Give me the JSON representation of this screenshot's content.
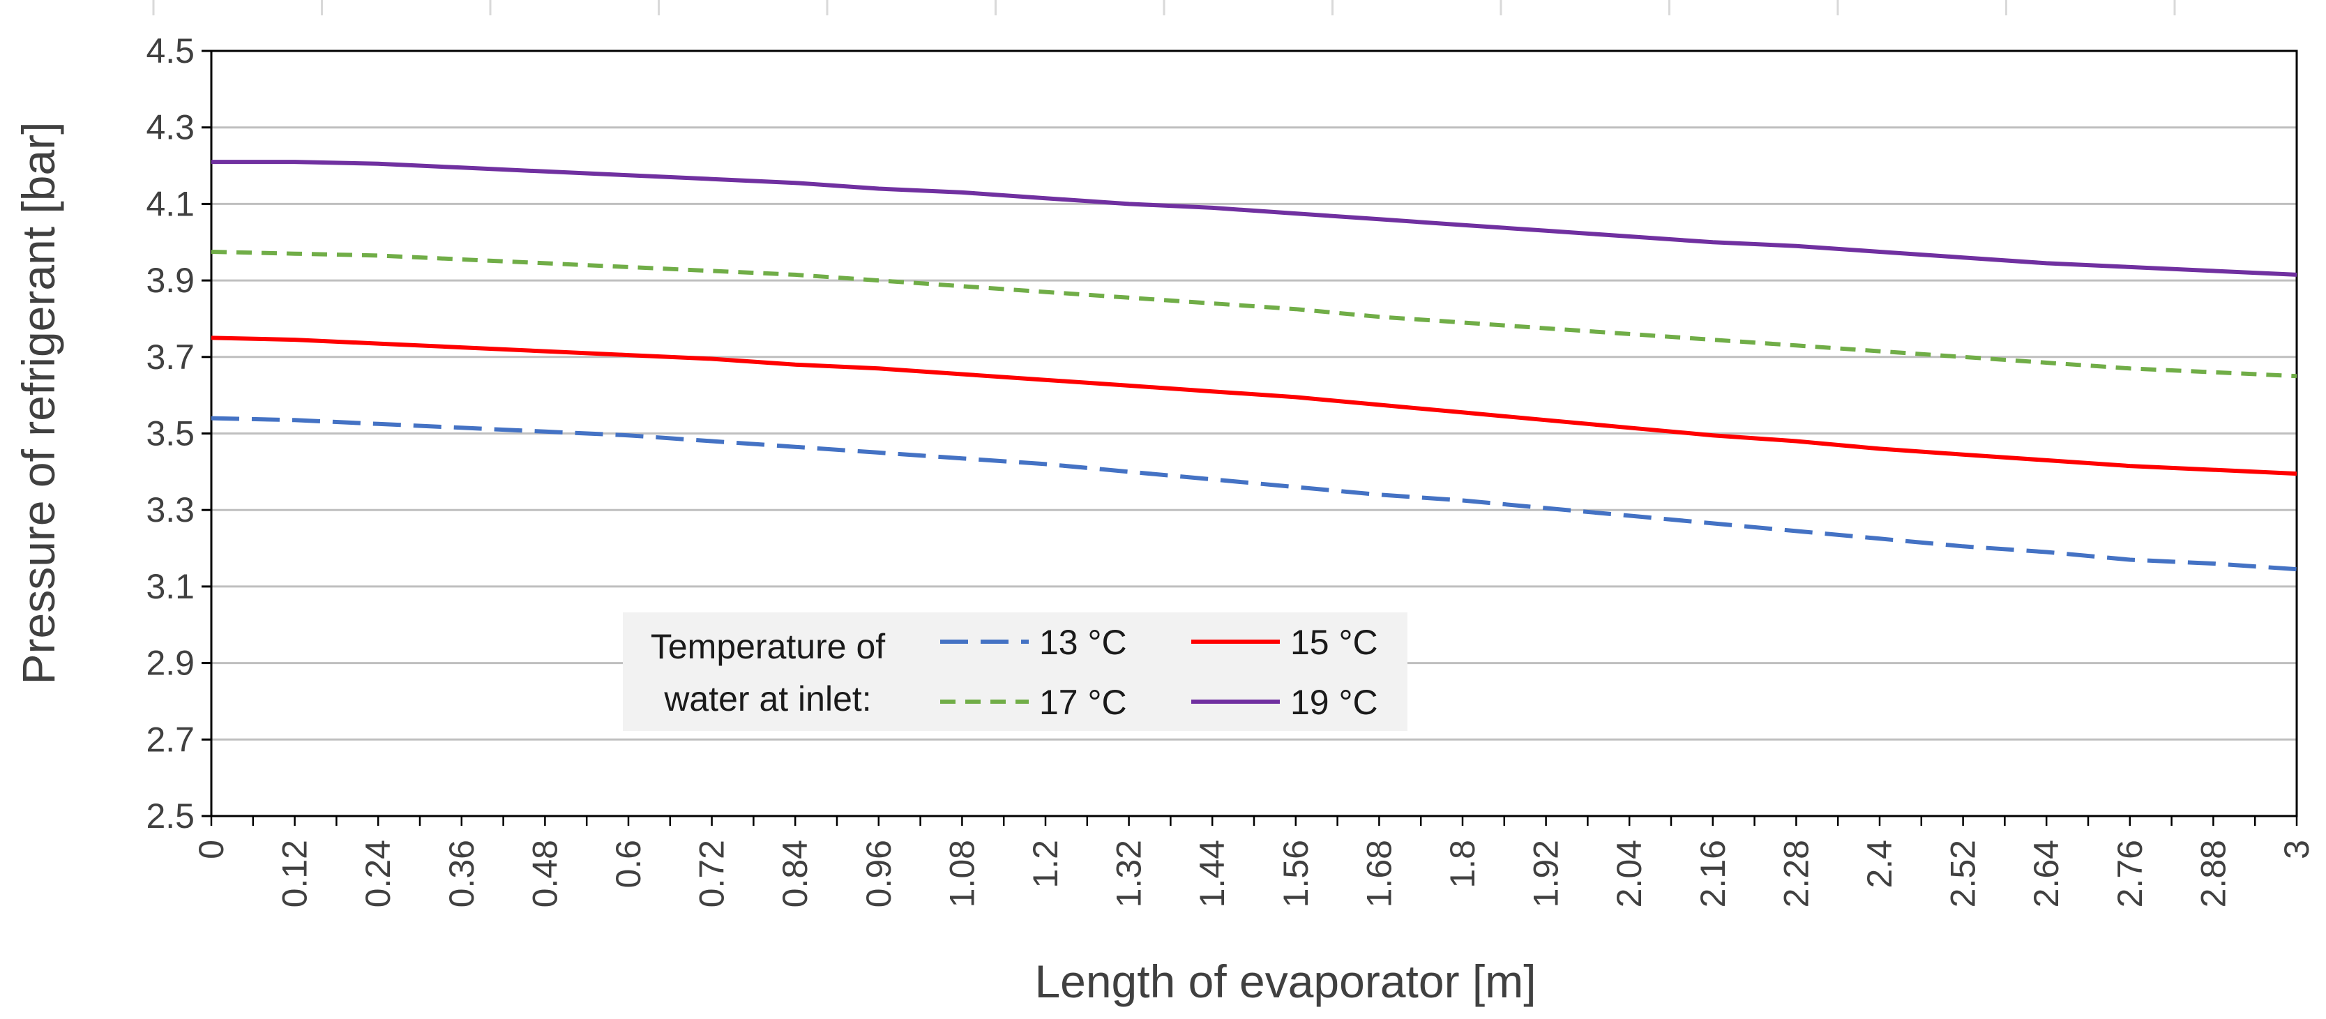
{
  "chart_data": {
    "type": "line",
    "title": "",
    "xlabel": "Length of evaporator [m]",
    "ylabel": "Pressure of refrigerant [bar]",
    "xlim": [
      0,
      3
    ],
    "ylim": [
      2.5,
      4.5
    ],
    "grid": true,
    "y_ticks": [
      "2.5",
      "2.7",
      "2.9",
      "3.1",
      "3.3",
      "3.5",
      "3.7",
      "3.9",
      "4.1",
      "4.3",
      "4.5"
    ],
    "x_ticks": [
      "0",
      "0.12",
      "0.24",
      "0.36",
      "0.48",
      "0.6",
      "0.72",
      "0.84",
      "0.96",
      "1.08",
      "1.2",
      "1.32",
      "1.44",
      "1.56",
      "1.68",
      "1.8",
      "1.92",
      "2.04",
      "2.16",
      "2.28",
      "2.4",
      "2.52",
      "2.64",
      "2.76",
      "2.88",
      "3"
    ],
    "legend": {
      "title_line1": "Temperature of",
      "title_line2": "water at inlet:",
      "placement": "lower-center"
    },
    "series": [
      {
        "name": "13 °C",
        "color": "#4472C4",
        "dash": "dashed",
        "x": [
          0,
          0.12,
          0.24,
          0.36,
          0.48,
          0.6,
          0.72,
          0.84,
          0.96,
          1.08,
          1.2,
          1.32,
          1.44,
          1.56,
          1.68,
          1.8,
          1.92,
          2.04,
          2.16,
          2.28,
          2.4,
          2.52,
          2.64,
          2.76,
          2.88,
          3
        ],
        "values": [
          3.54,
          3.535,
          3.525,
          3.515,
          3.505,
          3.495,
          3.48,
          3.465,
          3.45,
          3.435,
          3.42,
          3.4,
          3.38,
          3.36,
          3.34,
          3.325,
          3.305,
          3.285,
          3.265,
          3.245,
          3.225,
          3.205,
          3.19,
          3.17,
          3.16,
          3.145
        ]
      },
      {
        "name": "15 °C",
        "color": "#FF0000",
        "dash": "solid",
        "x": [
          0,
          0.12,
          0.24,
          0.36,
          0.48,
          0.6,
          0.72,
          0.84,
          0.96,
          1.08,
          1.2,
          1.32,
          1.44,
          1.56,
          1.68,
          1.8,
          1.92,
          2.04,
          2.16,
          2.28,
          2.4,
          2.52,
          2.64,
          2.76,
          2.88,
          3
        ],
        "values": [
          3.75,
          3.745,
          3.735,
          3.725,
          3.715,
          3.705,
          3.695,
          3.68,
          3.67,
          3.655,
          3.64,
          3.625,
          3.61,
          3.595,
          3.575,
          3.555,
          3.535,
          3.515,
          3.495,
          3.48,
          3.46,
          3.445,
          3.43,
          3.415,
          3.405,
          3.395
        ]
      },
      {
        "name": "17 °C",
        "color": "#70AD47",
        "dash": "dashed",
        "x": [
          0,
          0.12,
          0.24,
          0.36,
          0.48,
          0.6,
          0.72,
          0.84,
          0.96,
          1.08,
          1.2,
          1.32,
          1.44,
          1.56,
          1.68,
          1.8,
          1.92,
          2.04,
          2.16,
          2.28,
          2.4,
          2.52,
          2.64,
          2.76,
          2.88,
          3
        ],
        "values": [
          3.975,
          3.97,
          3.965,
          3.955,
          3.945,
          3.935,
          3.925,
          3.915,
          3.9,
          3.885,
          3.87,
          3.855,
          3.84,
          3.825,
          3.805,
          3.79,
          3.775,
          3.76,
          3.745,
          3.73,
          3.715,
          3.7,
          3.685,
          3.67,
          3.66,
          3.65
        ]
      },
      {
        "name": "19 °C",
        "color": "#7030A0",
        "dash": "solid",
        "x": [
          0,
          0.12,
          0.24,
          0.36,
          0.48,
          0.6,
          0.72,
          0.84,
          0.96,
          1.08,
          1.2,
          1.32,
          1.44,
          1.56,
          1.68,
          1.8,
          1.92,
          2.04,
          2.16,
          2.28,
          2.4,
          2.52,
          2.64,
          2.76,
          2.88,
          3
        ],
        "values": [
          4.21,
          4.21,
          4.205,
          4.195,
          4.185,
          4.175,
          4.165,
          4.155,
          4.14,
          4.13,
          4.115,
          4.1,
          4.09,
          4.075,
          4.06,
          4.045,
          4.03,
          4.015,
          4.0,
          3.99,
          3.975,
          3.96,
          3.945,
          3.935,
          3.925,
          3.915
        ]
      }
    ]
  }
}
